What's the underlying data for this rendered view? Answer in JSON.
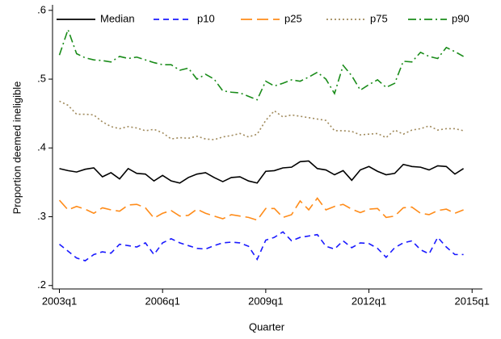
{
  "chart_data": {
    "type": "line",
    "xlabel": "Quarter",
    "ylabel": "Proportion deemed ineligible",
    "x": [
      2003,
      2003.25,
      2003.5,
      2003.75,
      2004,
      2004.25,
      2004.5,
      2004.75,
      2005,
      2005.25,
      2005.5,
      2005.75,
      2006,
      2006.25,
      2006.5,
      2006.75,
      2007,
      2007.25,
      2007.5,
      2007.75,
      2008,
      2008.25,
      2008.5,
      2008.75,
      2009,
      2009.25,
      2009.5,
      2009.75,
      2010,
      2010.25,
      2010.5,
      2010.75,
      2011,
      2011.25,
      2011.5,
      2011.75,
      2012,
      2012.25,
      2012.5,
      2012.75,
      2013,
      2013.25,
      2013.5,
      2013.75,
      2014,
      2014.25,
      2014.5,
      2014.75
    ],
    "xlim": [
      2002.8,
      2015.3
    ],
    "xticks": [
      {
        "value": 2003,
        "label": "2003q1"
      },
      {
        "value": 2006,
        "label": "2006q1"
      },
      {
        "value": 2009,
        "label": "2009q1"
      },
      {
        "value": 2012,
        "label": "2012q1"
      },
      {
        "value": 2015,
        "label": "2015q1"
      }
    ],
    "ylim": [
      0.195,
      0.608
    ],
    "yticks": [
      {
        "value": 0.2,
        "label": ".2"
      },
      {
        "value": 0.3,
        "label": ".3"
      },
      {
        "value": 0.4,
        "label": ".4"
      },
      {
        "value": 0.5,
        "label": ".5"
      },
      {
        "value": 0.6,
        "label": ".6"
      }
    ],
    "grid": false,
    "legend": "top",
    "series": [
      {
        "name": "Median",
        "color": "#000000",
        "dash": "solid",
        "values": [
          0.37,
          0.367,
          0.365,
          0.369,
          0.371,
          0.358,
          0.364,
          0.355,
          0.37,
          0.363,
          0.362,
          0.352,
          0.36,
          0.352,
          0.349,
          0.357,
          0.362,
          0.364,
          0.357,
          0.351,
          0.357,
          0.358,
          0.352,
          0.349,
          0.366,
          0.367,
          0.371,
          0.372,
          0.38,
          0.381,
          0.37,
          0.368,
          0.361,
          0.367,
          0.353,
          0.368,
          0.373,
          0.366,
          0.361,
          0.363,
          0.376,
          0.373,
          0.372,
          0.368,
          0.374,
          0.373,
          0.362,
          0.37
        ]
      },
      {
        "name": "p10",
        "color": "#1a1aff",
        "dash": "dash",
        "values": [
          0.26,
          0.25,
          0.24,
          0.236,
          0.245,
          0.249,
          0.247,
          0.26,
          0.258,
          0.256,
          0.262,
          0.245,
          0.262,
          0.268,
          0.262,
          0.258,
          0.254,
          0.253,
          0.258,
          0.262,
          0.263,
          0.262,
          0.257,
          0.238,
          0.266,
          0.27,
          0.278,
          0.265,
          0.27,
          0.272,
          0.274,
          0.257,
          0.253,
          0.265,
          0.255,
          0.262,
          0.261,
          0.254,
          0.241,
          0.255,
          0.262,
          0.265,
          0.252,
          0.246,
          0.27,
          0.256,
          0.245,
          0.245
        ]
      },
      {
        "name": "p25",
        "color": "#ff8c1a",
        "dash": "longdash",
        "values": [
          0.324,
          0.31,
          0.315,
          0.311,
          0.305,
          0.313,
          0.31,
          0.308,
          0.317,
          0.318,
          0.313,
          0.298,
          0.305,
          0.309,
          0.301,
          0.302,
          0.311,
          0.305,
          0.301,
          0.297,
          0.303,
          0.301,
          0.299,
          0.295,
          0.312,
          0.312,
          0.299,
          0.303,
          0.323,
          0.31,
          0.327,
          0.31,
          0.315,
          0.318,
          0.311,
          0.306,
          0.311,
          0.312,
          0.299,
          0.301,
          0.313,
          0.314,
          0.305,
          0.303,
          0.309,
          0.311,
          0.305,
          0.31
        ]
      },
      {
        "name": "p75",
        "color": "#a08a5c",
        "dash": "dot",
        "values": [
          0.468,
          0.462,
          0.449,
          0.449,
          0.448,
          0.438,
          0.431,
          0.428,
          0.431,
          0.429,
          0.425,
          0.427,
          0.422,
          0.413,
          0.415,
          0.414,
          0.417,
          0.413,
          0.412,
          0.416,
          0.418,
          0.421,
          0.416,
          0.42,
          0.44,
          0.454,
          0.445,
          0.448,
          0.446,
          0.444,
          0.442,
          0.44,
          0.425,
          0.425,
          0.424,
          0.419,
          0.42,
          0.421,
          0.415,
          0.426,
          0.42,
          0.426,
          0.428,
          0.432,
          0.426,
          0.428,
          0.428,
          0.425
        ]
      },
      {
        "name": "p90",
        "color": "#1a8c1a",
        "dash": "dashdot",
        "values": [
          0.535,
          0.572,
          0.537,
          0.531,
          0.528,
          0.527,
          0.525,
          0.533,
          0.53,
          0.532,
          0.528,
          0.524,
          0.521,
          0.521,
          0.513,
          0.516,
          0.5,
          0.507,
          0.5,
          0.483,
          0.481,
          0.48,
          0.475,
          0.47,
          0.497,
          0.49,
          0.494,
          0.499,
          0.497,
          0.503,
          0.51,
          0.5,
          0.479,
          0.52,
          0.505,
          0.484,
          0.492,
          0.499,
          0.488,
          0.494,
          0.526,
          0.525,
          0.539,
          0.533,
          0.53,
          0.546,
          0.54,
          0.533
        ]
      }
    ]
  }
}
